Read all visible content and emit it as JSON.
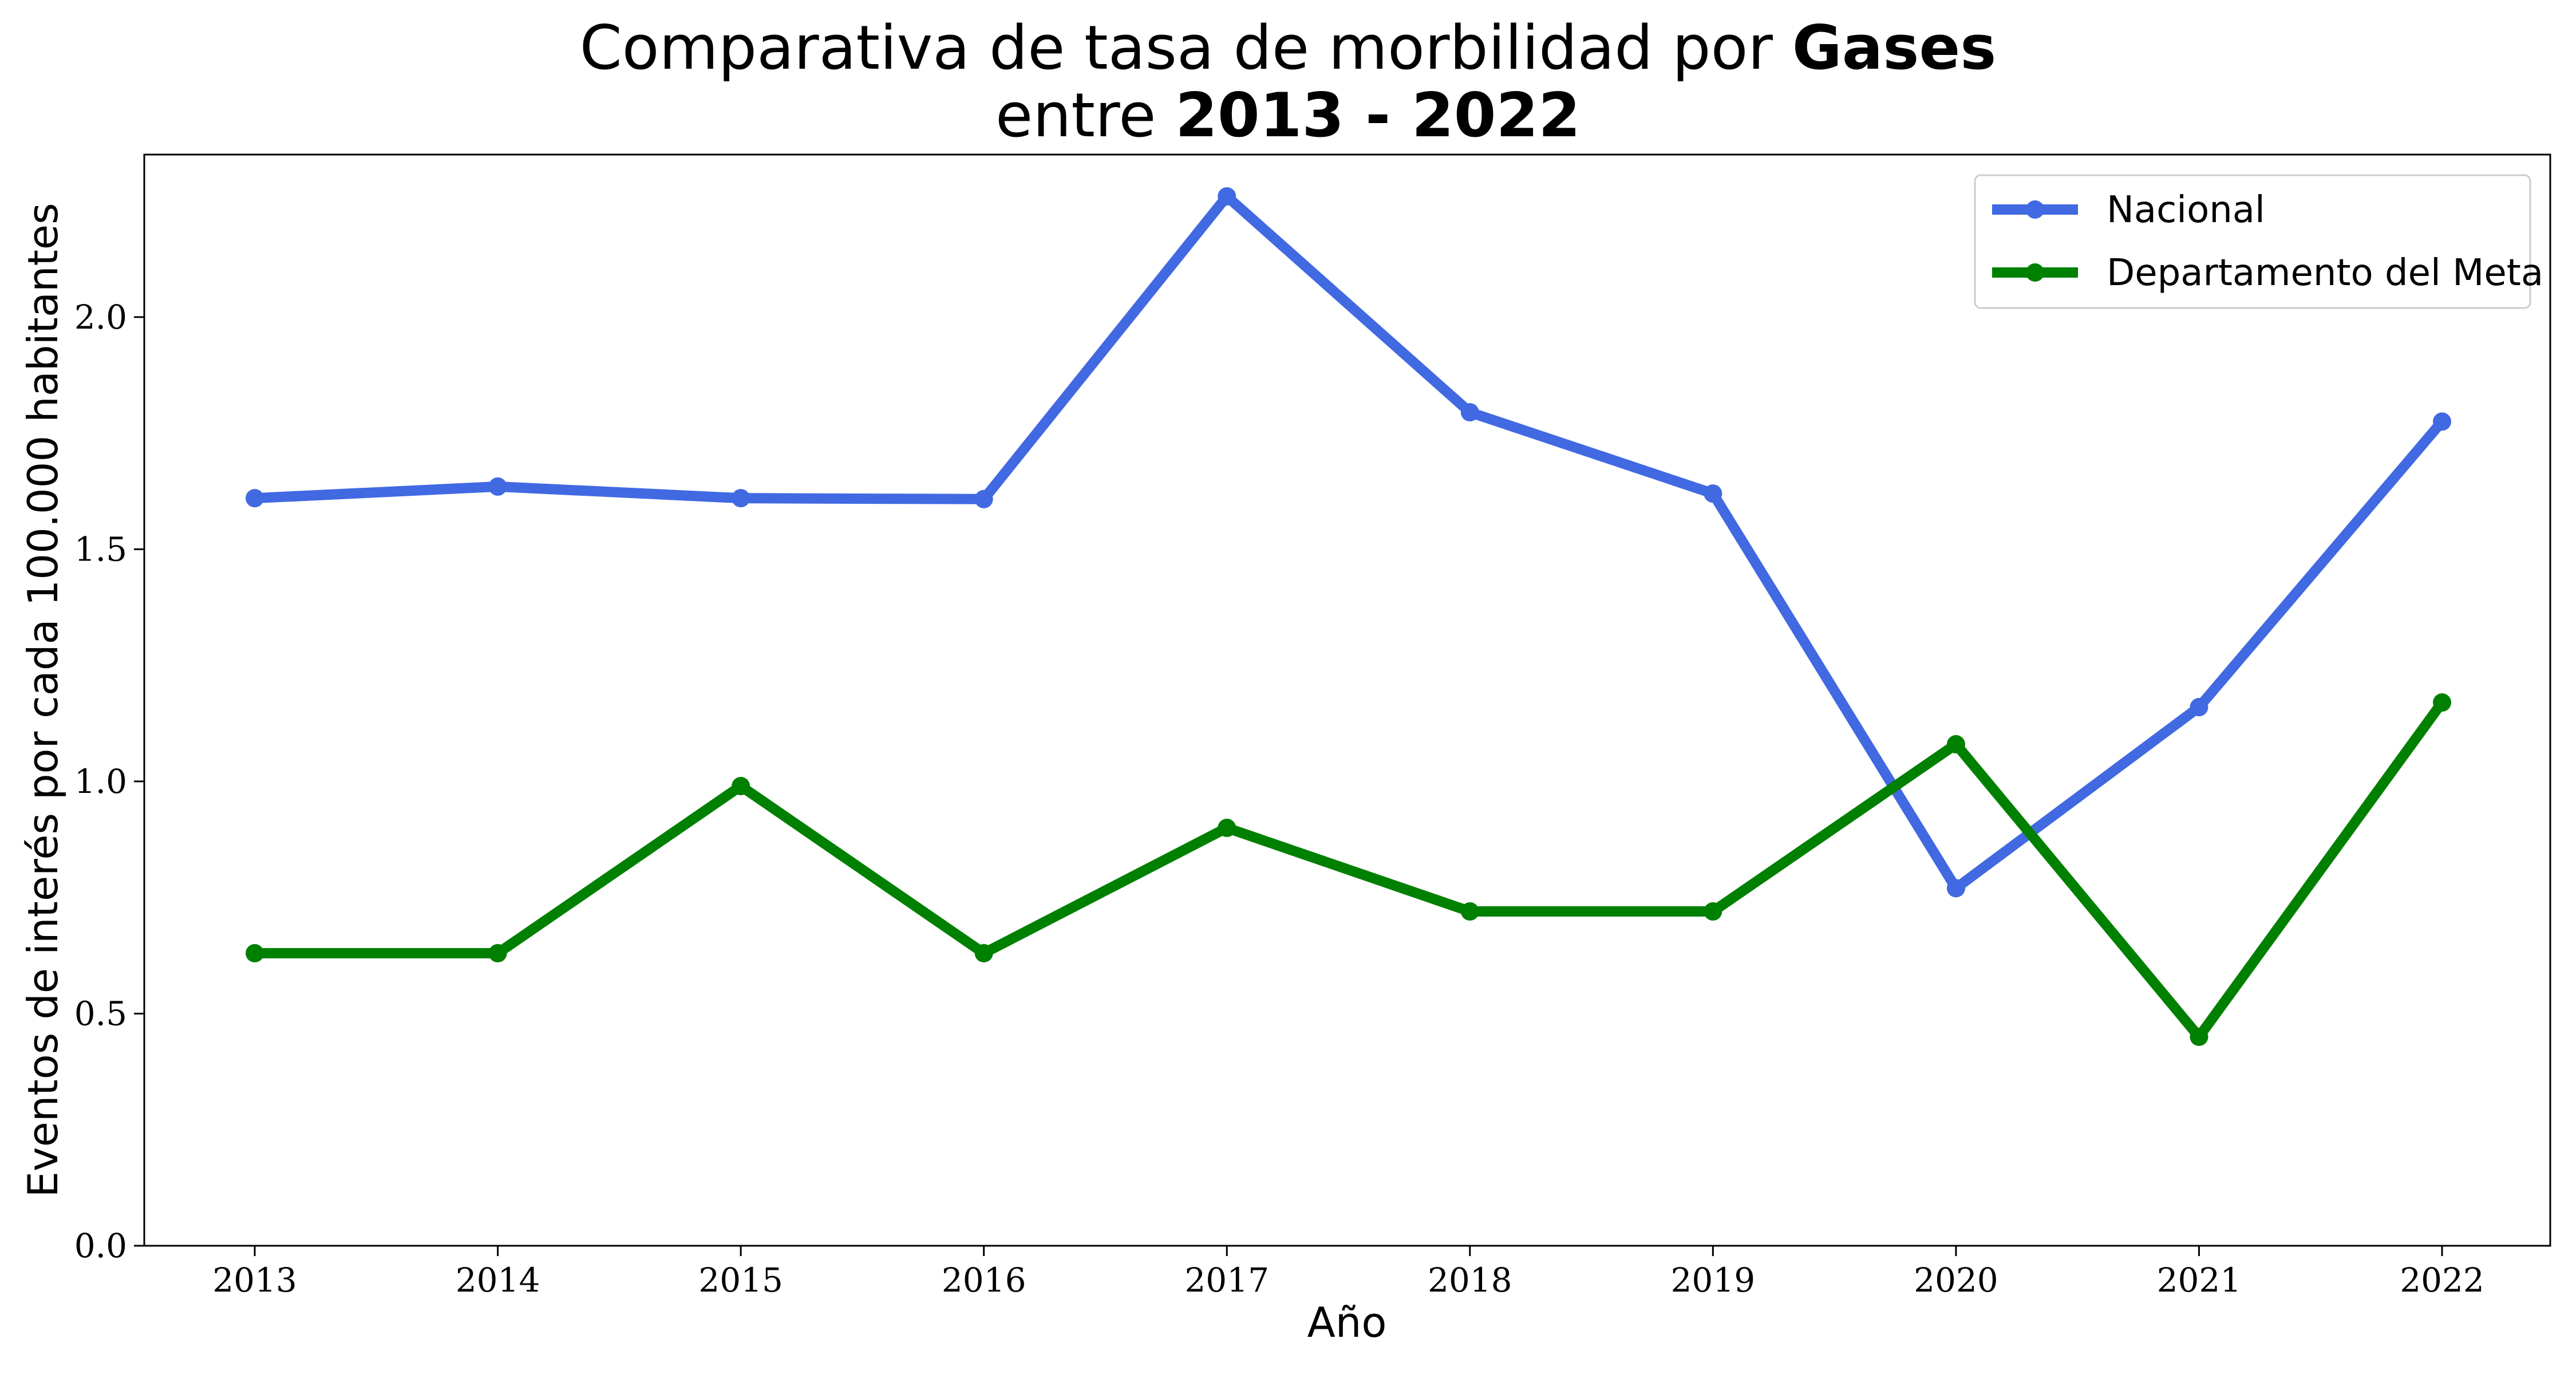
{
  "chart_data": {
    "type": "line",
    "title": {
      "line1_prefix": "Comparativa de tasa de morbilidad por ",
      "line1_bold": "Gases",
      "line2_prefix": "entre ",
      "line2_bold": "2013 - 2022"
    },
    "xlabel": "Año",
    "ylabel": "Eventos de interés por cada 100.000 habitantes",
    "x": [
      2013,
      2014,
      2015,
      2016,
      2017,
      2018,
      2019,
      2020,
      2021,
      2022
    ],
    "x_tick_labels": [
      "2013",
      "2014",
      "2015",
      "2016",
      "2017",
      "2018",
      "2019",
      "2020",
      "2021",
      "2022"
    ],
    "ylim": [
      0,
      2.35
    ],
    "y_ticks": [
      0.0,
      0.5,
      1.0,
      1.5,
      2.0
    ],
    "y_tick_labels": [
      "0.0",
      "0.5",
      "1.0",
      "1.5",
      "2.0"
    ],
    "grid": false,
    "legend_position": "top-right",
    "series": [
      {
        "name": "Nacional",
        "color": "#4169E1",
        "values": [
          1.61,
          1.635,
          1.61,
          1.608,
          2.26,
          1.795,
          1.62,
          0.77,
          1.16,
          1.775
        ]
      },
      {
        "name": "Departamento del Meta",
        "color": "#008000",
        "values": [
          0.63,
          0.63,
          0.99,
          0.63,
          0.9,
          0.72,
          0.72,
          1.08,
          0.45,
          1.17
        ]
      }
    ]
  }
}
